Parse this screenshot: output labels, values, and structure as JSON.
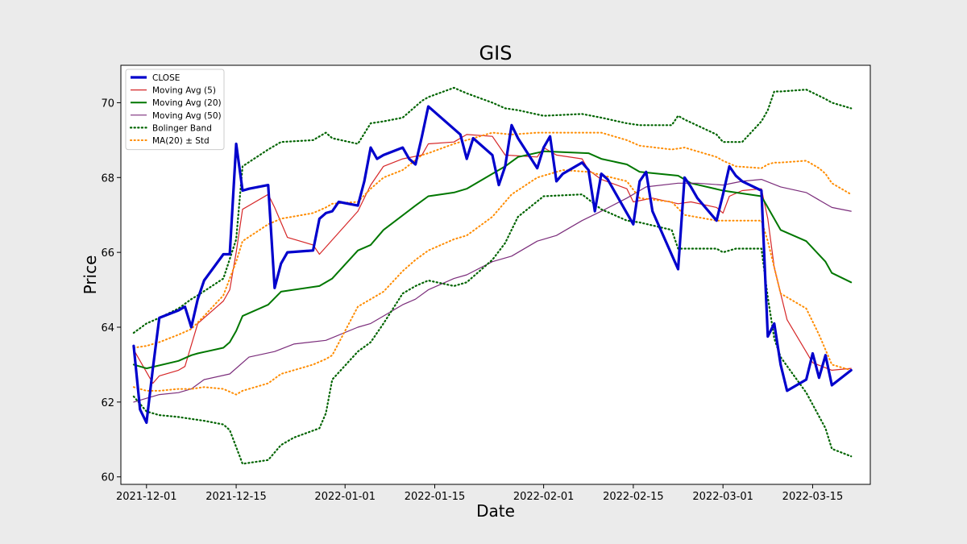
{
  "chart_data": {
    "type": "line",
    "title": "GIS",
    "xlabel": "Date",
    "ylabel": "Price",
    "xlim": [
      "2021-11-27",
      "2022-03-24"
    ],
    "ylim": [
      59.8,
      71
    ],
    "x_ticks": [
      "2021-12-01",
      "2021-12-15",
      "2022-01-01",
      "2022-01-15",
      "2022-02-01",
      "2022-02-15",
      "2022-03-01",
      "2022-03-15"
    ],
    "y_ticks": [
      60,
      62,
      64,
      66,
      68,
      70
    ],
    "legend_position": "top-left",
    "grid": false,
    "series": [
      {
        "name": "CLOSE",
        "color": "#0000cc",
        "style": "solid",
        "width": 3.2,
        "x": [
          "2021-11-29",
          "2021-11-30",
          "2021-12-01",
          "2021-12-02",
          "2021-12-03",
          "2021-12-06",
          "2021-12-07",
          "2021-12-08",
          "2021-12-09",
          "2021-12-10",
          "2021-12-13",
          "2021-12-14",
          "2021-12-15",
          "2021-12-16",
          "2021-12-17",
          "2021-12-20",
          "2021-12-21",
          "2021-12-22",
          "2021-12-23",
          "2021-12-27",
          "2021-12-28",
          "2021-12-29",
          "2021-12-30",
          "2021-12-31",
          "2022-01-03",
          "2022-01-04",
          "2022-01-05",
          "2022-01-06",
          "2022-01-07",
          "2022-01-10",
          "2022-01-11",
          "2022-01-12",
          "2022-01-13",
          "2022-01-14",
          "2022-01-18",
          "2022-01-19",
          "2022-01-20",
          "2022-01-21",
          "2022-01-24",
          "2022-01-25",
          "2022-01-26",
          "2022-01-27",
          "2022-01-28",
          "2022-01-31",
          "2022-02-01",
          "2022-02-02",
          "2022-02-03",
          "2022-02-04",
          "2022-02-07",
          "2022-02-08",
          "2022-02-09",
          "2022-02-10",
          "2022-02-11",
          "2022-02-14",
          "2022-02-15",
          "2022-02-16",
          "2022-02-17",
          "2022-02-18",
          "2022-02-22",
          "2022-02-23",
          "2022-02-24",
          "2022-02-25",
          "2022-02-28",
          "2022-03-01",
          "2022-03-02",
          "2022-03-03",
          "2022-03-04",
          "2022-03-07",
          "2022-03-08",
          "2022-03-09",
          "2022-03-10",
          "2022-03-11",
          "2022-03-14",
          "2022-03-15",
          "2022-03-16",
          "2022-03-17",
          "2022-03-18",
          "2022-03-21"
        ],
        "values": [
          63.5,
          61.8,
          61.45,
          62.9,
          64.25,
          64.45,
          64.55,
          64.0,
          64.75,
          65.25,
          65.95,
          65.95,
          68.9,
          67.65,
          67.7,
          67.8,
          65.05,
          65.7,
          66.0,
          66.05,
          66.9,
          67.05,
          67.1,
          67.35,
          67.25,
          67.9,
          68.8,
          68.5,
          68.6,
          68.8,
          68.5,
          68.35,
          69.1,
          69.9,
          69.3,
          69.15,
          68.5,
          69.05,
          68.6,
          67.8,
          68.3,
          69.4,
          69.05,
          68.25,
          68.8,
          69.1,
          67.9,
          68.1,
          68.4,
          68.2,
          67.1,
          68.1,
          67.95,
          67.05,
          66.75,
          67.9,
          68.15,
          67.1,
          65.55,
          68.0,
          67.75,
          67.45,
          66.85,
          67.55,
          68.3,
          68.05,
          67.9,
          67.65,
          63.75,
          64.1,
          63.0,
          62.3,
          62.6,
          63.3,
          62.65,
          63.25,
          62.45,
          62.85
        ]
      },
      {
        "name": "Moving Avg (5)",
        "color": "#d62728",
        "style": "solid",
        "width": 1.2,
        "x": [
          "2021-11-29",
          "2021-12-02",
          "2021-12-03",
          "2021-12-06",
          "2021-12-07",
          "2021-12-09",
          "2021-12-13",
          "2021-12-14",
          "2021-12-15",
          "2021-12-16",
          "2021-12-20",
          "2021-12-21",
          "2021-12-23",
          "2021-12-27",
          "2021-12-28",
          "2022-01-03",
          "2022-01-05",
          "2022-01-07",
          "2022-01-10",
          "2022-01-13",
          "2022-01-14",
          "2022-01-18",
          "2022-01-20",
          "2022-01-24",
          "2022-01-26",
          "2022-01-31",
          "2022-02-01",
          "2022-02-03",
          "2022-02-07",
          "2022-02-08",
          "2022-02-10",
          "2022-02-14",
          "2022-02-15",
          "2022-02-18",
          "2022-02-22",
          "2022-02-24",
          "2022-02-28",
          "2022-03-01",
          "2022-03-02",
          "2022-03-04",
          "2022-03-07",
          "2022-03-08",
          "2022-03-09",
          "2022-03-11",
          "2022-03-15",
          "2022-03-18",
          "2022-03-21"
        ],
        "values": [
          63.4,
          62.5,
          62.7,
          62.85,
          62.95,
          64.1,
          64.7,
          65.0,
          66.0,
          67.15,
          67.55,
          67.2,
          66.4,
          66.2,
          65.95,
          67.1,
          67.8,
          68.3,
          68.5,
          68.6,
          68.9,
          68.95,
          69.15,
          69.1,
          68.6,
          68.55,
          68.8,
          68.6,
          68.5,
          68.2,
          67.95,
          67.7,
          67.35,
          67.45,
          67.3,
          67.35,
          67.2,
          67.05,
          67.5,
          67.65,
          67.7,
          66.9,
          65.6,
          64.2,
          63.05,
          62.85,
          62.9
        ]
      },
      {
        "name": "Moving Avg (20)",
        "color": "#007700",
        "style": "solid",
        "width": 2,
        "x": [
          "2021-11-29",
          "2021-12-01",
          "2021-12-06",
          "2021-12-08",
          "2021-12-09",
          "2021-12-13",
          "2021-12-14",
          "2021-12-15",
          "2021-12-16",
          "2021-12-20",
          "2021-12-22",
          "2021-12-28",
          "2021-12-30",
          "2022-01-03",
          "2022-01-05",
          "2022-01-07",
          "2022-01-12",
          "2022-01-14",
          "2022-01-18",
          "2022-01-20",
          "2022-01-24",
          "2022-01-26",
          "2022-01-28",
          "2022-02-01",
          "2022-02-08",
          "2022-02-10",
          "2022-02-14",
          "2022-02-16",
          "2022-02-22",
          "2022-02-24",
          "2022-03-01",
          "2022-03-03",
          "2022-03-07",
          "2022-03-10",
          "2022-03-14",
          "2022-03-17",
          "2022-03-18",
          "2022-03-21"
        ],
        "values": [
          63.0,
          62.9,
          63.1,
          63.25,
          63.3,
          63.45,
          63.6,
          63.9,
          64.3,
          64.6,
          64.95,
          65.1,
          65.3,
          66.05,
          66.2,
          66.6,
          67.25,
          67.5,
          67.6,
          67.7,
          68.1,
          68.3,
          68.55,
          68.7,
          68.65,
          68.5,
          68.35,
          68.15,
          68.05,
          67.85,
          67.65,
          67.6,
          67.5,
          66.6,
          66.3,
          65.75,
          65.45,
          65.2
        ]
      },
      {
        "name": "Moving Avg (50)",
        "color": "#7b2d7b",
        "style": "solid",
        "width": 1.2,
        "x": [
          "2021-11-29",
          "2021-12-01",
          "2021-12-03",
          "2021-12-06",
          "2021-12-08",
          "2021-12-10",
          "2021-12-14",
          "2021-12-17",
          "2021-12-21",
          "2021-12-24",
          "2021-12-29",
          "2022-01-03",
          "2022-01-05",
          "2022-01-07",
          "2022-01-10",
          "2022-01-12",
          "2022-01-14",
          "2022-01-18",
          "2022-01-20",
          "2022-01-24",
          "2022-01-27",
          "2022-01-31",
          "2022-02-03",
          "2022-02-07",
          "2022-02-10",
          "2022-02-14",
          "2022-02-17",
          "2022-02-22",
          "2022-02-25",
          "2022-03-01",
          "2022-03-04",
          "2022-03-07",
          "2022-03-10",
          "2022-03-14",
          "2022-03-18",
          "2022-03-21"
        ],
        "values": [
          62.0,
          62.1,
          62.2,
          62.25,
          62.35,
          62.6,
          62.75,
          63.2,
          63.35,
          63.55,
          63.65,
          64.0,
          64.1,
          64.3,
          64.6,
          64.75,
          65.0,
          65.3,
          65.4,
          65.75,
          65.9,
          66.3,
          66.45,
          66.85,
          67.1,
          67.45,
          67.75,
          67.85,
          67.85,
          67.8,
          67.9,
          67.95,
          67.75,
          67.6,
          67.2,
          67.1
        ]
      },
      {
        "name": "Bolinger Band",
        "color": "#006400",
        "style": "dotted",
        "width": 2.2,
        "x": [
          "2021-11-29",
          "2021-12-01",
          "2021-12-03",
          "2021-12-06",
          "2021-12-08",
          "2021-12-09",
          "2021-12-13",
          "2021-12-15",
          "2021-12-16",
          "2021-12-20",
          "2021-12-22",
          "2021-12-27",
          "2021-12-29",
          "2021-12-30",
          "2022-01-03",
          "2022-01-05",
          "2022-01-07",
          "2022-01-10",
          "2022-01-13",
          "2022-01-14",
          "2022-01-18",
          "2022-01-20",
          "2022-01-24",
          "2022-01-26",
          "2022-01-28",
          "2022-02-01",
          "2022-02-07",
          "2022-02-10",
          "2022-02-14",
          "2022-02-16",
          "2022-02-21",
          "2022-02-22",
          "2022-02-23",
          "2022-02-28",
          "2022-03-01",
          "2022-03-02",
          "2022-03-04",
          "2022-03-07",
          "2022-03-08",
          "2022-03-09",
          "2022-03-10",
          "2022-03-14",
          "2022-03-17",
          "2022-03-18",
          "2022-03-21"
        ],
        "values": [
          63.85,
          64.1,
          64.25,
          64.5,
          64.75,
          64.85,
          65.3,
          66.35,
          68.3,
          68.75,
          68.95,
          69.0,
          69.2,
          69.05,
          68.9,
          69.45,
          69.5,
          69.6,
          70.05,
          70.15,
          70.4,
          70.25,
          70.0,
          69.85,
          69.8,
          69.65,
          69.7,
          69.6,
          69.45,
          69.4,
          69.4,
          69.65,
          69.55,
          69.15,
          68.95,
          68.95,
          68.95,
          69.5,
          69.8,
          70.3,
          70.3,
          70.35,
          70.1,
          70.0,
          69.85
        ]
      },
      {
        "name": "Bolinger Band (lower)",
        "color": "#006400",
        "style": "dotted",
        "width": 2.2,
        "x": [
          "2021-11-29",
          "2021-12-01",
          "2021-12-03",
          "2021-12-06",
          "2021-12-08",
          "2021-12-10",
          "2021-12-13",
          "2021-12-14",
          "2021-12-16",
          "2021-12-20",
          "2021-12-22",
          "2021-12-24",
          "2021-12-28",
          "2021-12-29",
          "2021-12-30",
          "2022-01-03",
          "2022-01-05",
          "2022-01-07",
          "2022-01-10",
          "2022-01-12",
          "2022-01-14",
          "2022-01-18",
          "2022-01-20",
          "2022-01-24",
          "2022-01-26",
          "2022-01-28",
          "2022-02-01",
          "2022-02-07",
          "2022-02-10",
          "2022-02-14",
          "2022-02-16",
          "2022-02-21",
          "2022-02-22",
          "2022-02-24",
          "2022-02-28",
          "2022-03-01",
          "2022-03-03",
          "2022-03-07",
          "2022-03-08",
          "2022-03-09",
          "2022-03-10",
          "2022-03-14",
          "2022-03-17",
          "2022-03-18",
          "2022-03-21"
        ],
        "values": [
          62.15,
          61.75,
          61.65,
          61.6,
          61.55,
          61.5,
          61.4,
          61.25,
          60.35,
          60.45,
          60.85,
          61.05,
          61.3,
          61.7,
          62.6,
          63.35,
          63.6,
          64.1,
          64.9,
          65.1,
          65.25,
          65.1,
          65.2,
          65.8,
          66.25,
          66.95,
          67.5,
          67.55,
          67.15,
          66.85,
          66.8,
          66.6,
          66.1,
          66.1,
          66.1,
          66.0,
          66.1,
          66.1,
          64.8,
          63.7,
          63.2,
          62.25,
          61.3,
          60.75,
          60.55
        ]
      },
      {
        "name": "MA(20) ± Std",
        "color": "#ff8c00",
        "style": "dotted",
        "width": 2,
        "x": [
          "2021-11-29",
          "2021-12-01",
          "2021-12-03",
          "2021-12-06",
          "2021-12-08",
          "2021-12-10",
          "2021-12-13",
          "2021-12-15",
          "2021-12-16",
          "2021-12-20",
          "2021-12-22",
          "2021-12-27",
          "2021-12-29",
          "2021-12-30",
          "2022-01-03",
          "2022-01-05",
          "2022-01-07",
          "2022-01-10",
          "2022-01-13",
          "2022-01-14",
          "2022-01-18",
          "2022-01-20",
          "2022-01-24",
          "2022-01-27",
          "2022-01-31",
          "2022-02-04",
          "2022-02-10",
          "2022-02-14",
          "2022-02-16",
          "2022-02-21",
          "2022-02-23",
          "2022-02-28",
          "2022-03-01",
          "2022-03-03",
          "2022-03-07",
          "2022-03-08",
          "2022-03-09",
          "2022-03-10",
          "2022-03-14",
          "2022-03-16",
          "2022-03-17",
          "2022-03-18",
          "2022-03-21"
        ],
        "values": [
          63.45,
          63.5,
          63.6,
          63.8,
          63.95,
          64.3,
          64.85,
          65.75,
          66.3,
          66.75,
          66.9,
          67.05,
          67.2,
          67.3,
          67.35,
          67.7,
          68.0,
          68.2,
          68.6,
          68.65,
          68.9,
          69.0,
          69.2,
          69.15,
          69.2,
          69.2,
          69.2,
          69.0,
          68.85,
          68.75,
          68.8,
          68.55,
          68.45,
          68.3,
          68.25,
          68.35,
          68.4,
          68.4,
          68.45,
          68.25,
          68.1,
          67.85,
          67.55
        ]
      },
      {
        "name": "MA(20) ± Std (lower)",
        "color": "#ff8c00",
        "style": "dotted",
        "width": 2,
        "x": [
          "2021-11-29",
          "2021-12-01",
          "2021-12-03",
          "2021-12-06",
          "2021-12-08",
          "2021-12-10",
          "2021-12-13",
          "2021-12-15",
          "2021-12-16",
          "2021-12-20",
          "2021-12-22",
          "2021-12-27",
          "2021-12-29",
          "2021-12-30",
          "2022-01-03",
          "2022-01-05",
          "2022-01-07",
          "2022-01-10",
          "2022-01-12",
          "2022-01-14",
          "2022-01-18",
          "2022-01-20",
          "2022-01-24",
          "2022-01-27",
          "2022-01-31",
          "2022-02-04",
          "2022-02-08",
          "2022-02-14",
          "2022-02-16",
          "2022-02-21",
          "2022-02-23",
          "2022-02-28",
          "2022-03-01",
          "2022-03-03",
          "2022-03-07",
          "2022-03-08",
          "2022-03-09",
          "2022-03-10",
          "2022-03-14",
          "2022-03-16",
          "2022-03-18",
          "2022-03-21"
        ],
        "values": [
          62.4,
          62.3,
          62.3,
          62.35,
          62.35,
          62.4,
          62.35,
          62.2,
          62.3,
          62.5,
          62.75,
          63.0,
          63.15,
          63.25,
          64.55,
          64.75,
          64.95,
          65.5,
          65.8,
          66.05,
          66.35,
          66.45,
          66.95,
          67.55,
          68.0,
          68.2,
          68.15,
          67.9,
          67.45,
          67.35,
          67.0,
          66.85,
          66.85,
          66.85,
          66.85,
          66.3,
          65.6,
          64.9,
          64.5,
          63.8,
          63.0,
          62.85
        ]
      }
    ],
    "legend": [
      {
        "label": "CLOSE",
        "color": "#0000cc",
        "style": "solid",
        "width": 3.2
      },
      {
        "label": "Moving Avg (5)",
        "color": "#d62728",
        "style": "solid",
        "width": 1.2
      },
      {
        "label": "Moving Avg (20)",
        "color": "#007700",
        "style": "solid",
        "width": 2
      },
      {
        "label": "Moving Avg (50)",
        "color": "#7b2d7b",
        "style": "solid",
        "width": 1.2
      },
      {
        "label": "Bolinger Band",
        "color": "#006400",
        "style": "dotted",
        "width": 2.2
      },
      {
        "label": "MA(20) ± Std",
        "color": "#ff8c00",
        "style": "dotted",
        "width": 2
      }
    ]
  }
}
